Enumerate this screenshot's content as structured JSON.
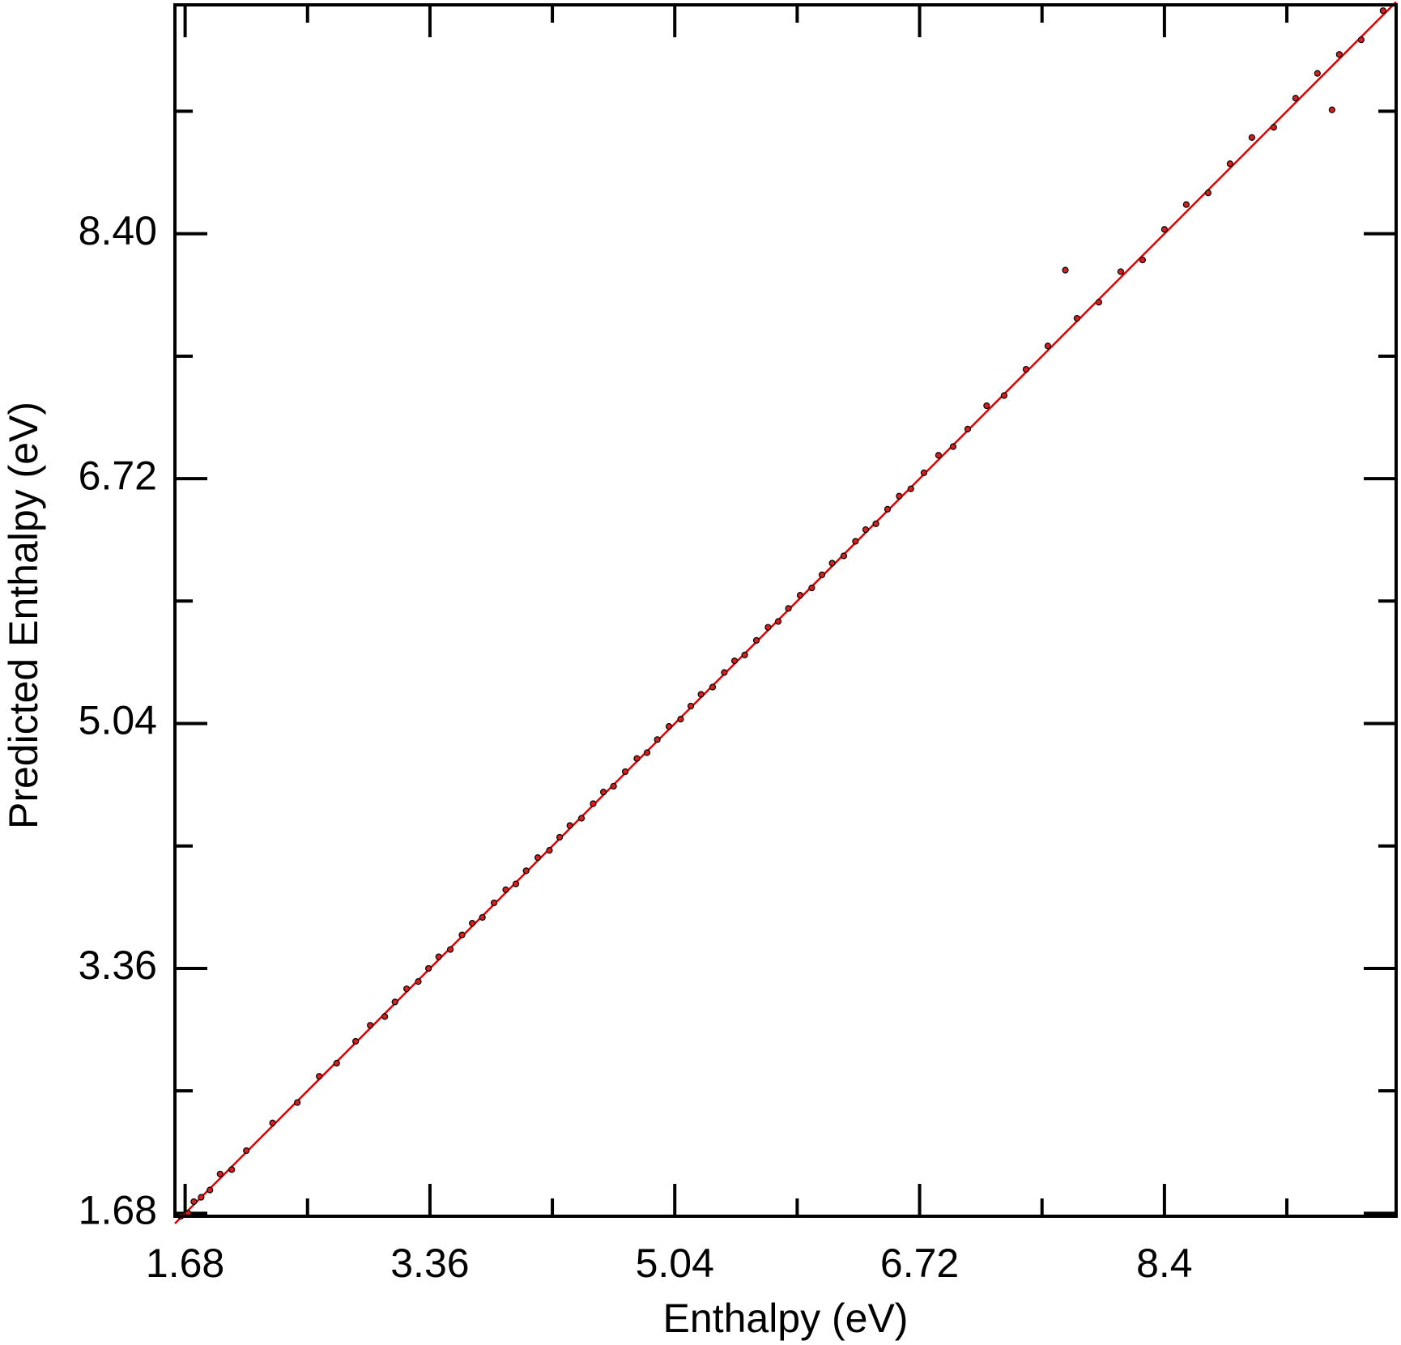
{
  "chart_data": {
    "type": "scatter",
    "xlabel": "Enthalpy (eV)",
    "ylabel": "Predicted Enthalpy (eV)",
    "xlim": [
      1.61,
      9.99
    ],
    "ylim": [
      1.66,
      9.97
    ],
    "xticks": [
      1.68,
      3.36,
      5.04,
      6.72,
      8.4
    ],
    "yticks": [
      1.68,
      3.36,
      5.04,
      6.72,
      {
        "value": 8.4,
        "label": "8.40"
      }
    ],
    "xminorticks": [
      2.52,
      4.2,
      5.88,
      7.56,
      9.24
    ],
    "yminorticks": [
      2.52,
      4.2,
      5.88,
      7.56,
      9.24
    ],
    "marker_color": "#d62020",
    "marker_edge": "#000000",
    "x": [
      1.65,
      1.7,
      1.74,
      1.79,
      1.85,
      1.92,
      2.0,
      2.1,
      2.28,
      2.45,
      2.6,
      2.72,
      2.85,
      2.95,
      3.05,
      3.12,
      3.2,
      3.28,
      3.35,
      3.42,
      3.5,
      3.58,
      3.65,
      3.72,
      3.8,
      3.88,
      3.95,
      4.02,
      4.1,
      4.18,
      4.25,
      4.32,
      4.4,
      4.48,
      4.55,
      4.62,
      4.7,
      4.78,
      4.85,
      4.92,
      5.0,
      5.08,
      5.15,
      5.22,
      5.3,
      5.38,
      5.45,
      5.52,
      5.6,
      5.68,
      5.75,
      5.82,
      5.9,
      5.98,
      6.05,
      6.12,
      6.2,
      6.28,
      6.35,
      6.42,
      6.5,
      6.58,
      6.66,
      6.75,
      6.85,
      6.95,
      7.05,
      7.18,
      7.3,
      7.45,
      7.6,
      7.72,
      7.8,
      7.95,
      8.1,
      8.25,
      8.4,
      8.55,
      8.7,
      8.85,
      9.0,
      9.15,
      9.3,
      9.45,
      9.55,
      9.6,
      9.75,
      9.9
    ],
    "y": [
      1.66,
      1.68,
      1.76,
      1.79,
      1.84,
      1.95,
      1.98,
      2.11,
      2.3,
      2.44,
      2.62,
      2.71,
      2.86,
      2.97,
      3.03,
      3.13,
      3.22,
      3.27,
      3.36,
      3.44,
      3.49,
      3.59,
      3.67,
      3.71,
      3.81,
      3.9,
      3.94,
      4.03,
      4.12,
      4.17,
      4.26,
      4.34,
      4.39,
      4.49,
      4.57,
      4.61,
      4.71,
      4.8,
      4.84,
      4.93,
      5.02,
      5.07,
      5.16,
      5.24,
      5.29,
      5.39,
      5.47,
      5.51,
      5.61,
      5.7,
      5.74,
      5.83,
      5.92,
      5.97,
      6.06,
      6.14,
      6.19,
      6.29,
      6.37,
      6.41,
      6.51,
      6.6,
      6.65,
      6.76,
      6.88,
      6.94,
      7.06,
      7.22,
      7.29,
      7.47,
      7.63,
      8.15,
      7.82,
      7.93,
      8.14,
      8.22,
      8.43,
      8.6,
      8.68,
      8.88,
      9.06,
      9.13,
      9.33,
      9.5,
      9.25,
      9.63,
      9.73,
      9.93
    ],
    "fit_line": {
      "color": "#e00000",
      "x": [
        1.61,
        9.99
      ],
      "y": [
        1.61,
        9.99
      ]
    }
  }
}
